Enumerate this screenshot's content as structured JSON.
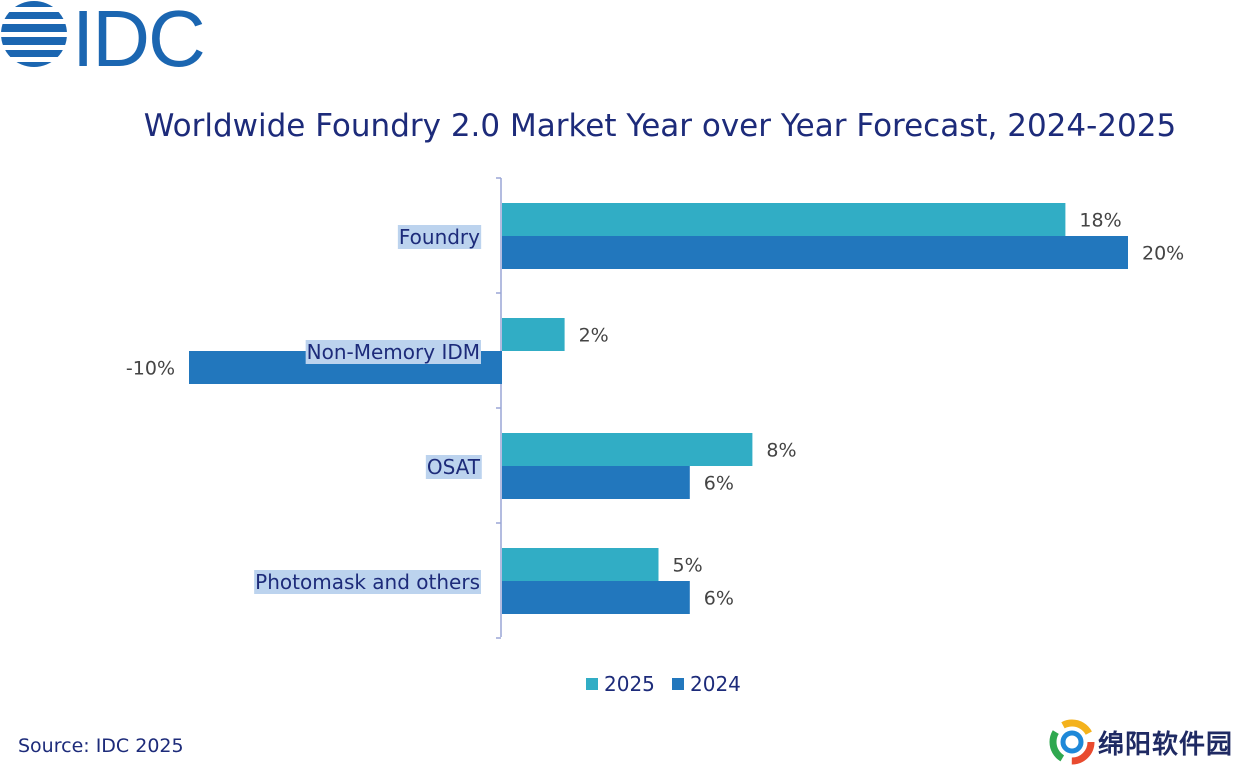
{
  "brand": {
    "logo_text": "IDC",
    "color": "#1b66b1"
  },
  "chart_data": {
    "type": "bar",
    "orientation": "horizontal",
    "title": "Worldwide Foundry 2.0 Market Year over Year Forecast, 2024-2025",
    "categories": [
      "Foundry",
      "Non-Memory IDM",
      "OSAT",
      "Photomask and others"
    ],
    "series": [
      {
        "name": "2025",
        "values": [
          18,
          2,
          8,
          5
        ],
        "color": "#31adc5"
      },
      {
        "name": "2024",
        "values": [
          20,
          -10,
          6,
          6
        ],
        "color": "#2277bd"
      }
    ],
    "value_format": "percent",
    "xlim": [
      -10,
      20
    ],
    "grid": false,
    "legend_position": "bottom"
  },
  "source": "Source: IDC 2025",
  "watermark": {
    "text": "绵阳软件园"
  }
}
